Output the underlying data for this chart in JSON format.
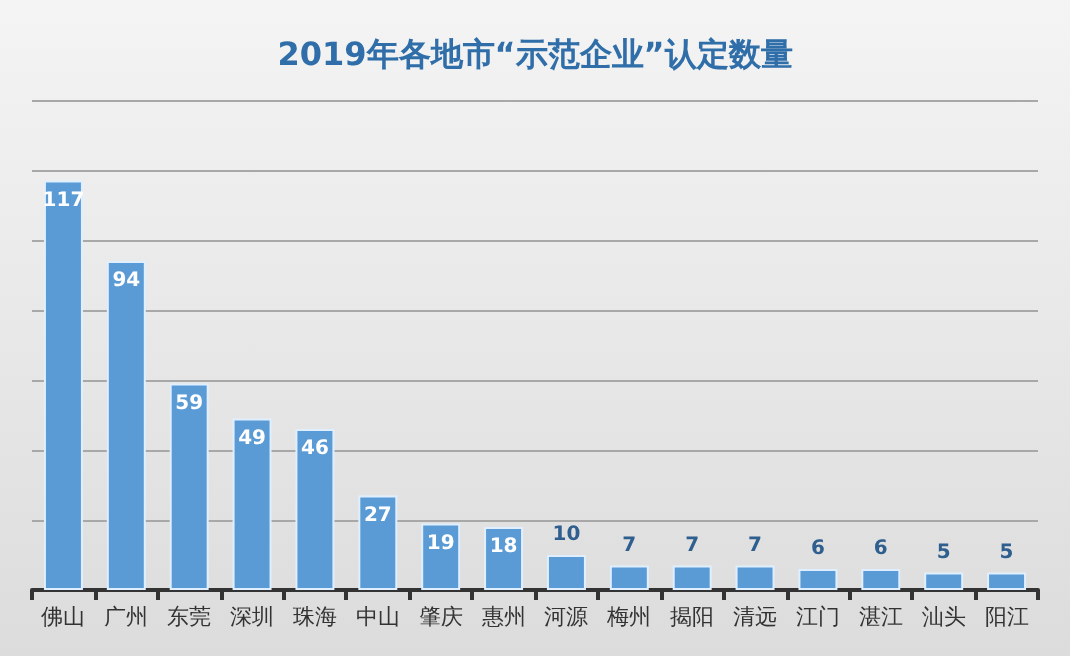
{
  "chart_data": {
    "type": "bar",
    "title": "2019年各地市“示范企业”认定数量",
    "categories": [
      "佛山",
      "广州",
      "东莞",
      "深圳",
      "珠海",
      "中山",
      "肇庆",
      "惠州",
      "河源",
      "梅州",
      "揭阳",
      "清远",
      "江门",
      "湛江",
      "汕头",
      "阳江"
    ],
    "values": [
      117,
      94,
      59,
      49,
      46,
      27,
      19,
      18,
      10,
      7,
      7,
      7,
      6,
      6,
      5,
      5
    ],
    "color": "#5b9bd5",
    "data_labels": true,
    "grid": "y",
    "ylim": [
      0,
      140
    ],
    "yticks": [
      {
        "value": 0,
        "label": null
      },
      {
        "value": 20,
        "label": null
      },
      {
        "value": 40,
        "label": null
      },
      {
        "value": 60,
        "label": null
      },
      {
        "value": 80,
        "label": null
      },
      {
        "value": 100,
        "label": null
      },
      {
        "value": 120,
        "label": null
      },
      {
        "value": 140,
        "label": null
      }
    ]
  }
}
